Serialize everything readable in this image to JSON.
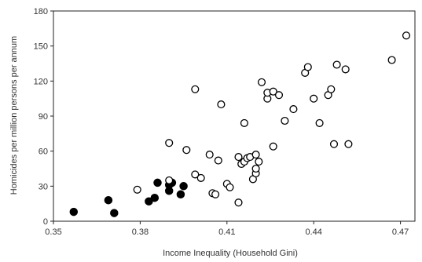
{
  "chart_data": {
    "type": "scatter",
    "title": "",
    "xlabel": "Income Inequality (Household Gini)",
    "ylabel": "Homicides per million persons per annum",
    "xlim": [
      0.35,
      0.475
    ],
    "ylim": [
      0,
      180
    ],
    "x_ticks": [
      "0.35",
      "0.38",
      "0.41",
      "0.44",
      "0.47"
    ],
    "x_tick_values": [
      0.35,
      0.38,
      0.41,
      0.44,
      0.47
    ],
    "y_ticks": [
      "0",
      "30",
      "60",
      "90",
      "120",
      "150",
      "180"
    ],
    "y_tick_values": [
      0,
      30,
      60,
      90,
      120,
      150,
      180
    ],
    "grid": false,
    "legend": "none",
    "series": [
      {
        "marker": "filled-circle",
        "color": "#000000",
        "points": [
          [
            0.357,
            8
          ],
          [
            0.369,
            18
          ],
          [
            0.371,
            7
          ],
          [
            0.383,
            17
          ],
          [
            0.385,
            20
          ],
          [
            0.386,
            33
          ],
          [
            0.39,
            26
          ],
          [
            0.39,
            31
          ],
          [
            0.391,
            33
          ],
          [
            0.394,
            23
          ],
          [
            0.395,
            30
          ]
        ]
      },
      {
        "marker": "open-circle",
        "color": "#000000",
        "points": [
          [
            0.379,
            27
          ],
          [
            0.39,
            67
          ],
          [
            0.39,
            35
          ],
          [
            0.396,
            61
          ],
          [
            0.399,
            113
          ],
          [
            0.399,
            40
          ],
          [
            0.401,
            37
          ],
          [
            0.404,
            57
          ],
          [
            0.405,
            24
          ],
          [
            0.406,
            23
          ],
          [
            0.407,
            52
          ],
          [
            0.408,
            100
          ],
          [
            0.41,
            32
          ],
          [
            0.411,
            29
          ],
          [
            0.414,
            16
          ],
          [
            0.414,
            55
          ],
          [
            0.415,
            49
          ],
          [
            0.416,
            84
          ],
          [
            0.416,
            51
          ],
          [
            0.417,
            54
          ],
          [
            0.418,
            55
          ],
          [
            0.419,
            36
          ],
          [
            0.42,
            41
          ],
          [
            0.42,
            45
          ],
          [
            0.42,
            57
          ],
          [
            0.421,
            51
          ],
          [
            0.422,
            119
          ],
          [
            0.424,
            105
          ],
          [
            0.424,
            110
          ],
          [
            0.426,
            64
          ],
          [
            0.426,
            111
          ],
          [
            0.428,
            108
          ],
          [
            0.43,
            86
          ],
          [
            0.433,
            96
          ],
          [
            0.437,
            127
          ],
          [
            0.438,
            132
          ],
          [
            0.44,
            105
          ],
          [
            0.442,
            84
          ],
          [
            0.445,
            108
          ],
          [
            0.446,
            113
          ],
          [
            0.447,
            66
          ],
          [
            0.448,
            134
          ],
          [
            0.451,
            130
          ],
          [
            0.452,
            66
          ],
          [
            0.467,
            138
          ],
          [
            0.472,
            159
          ]
        ]
      }
    ]
  }
}
